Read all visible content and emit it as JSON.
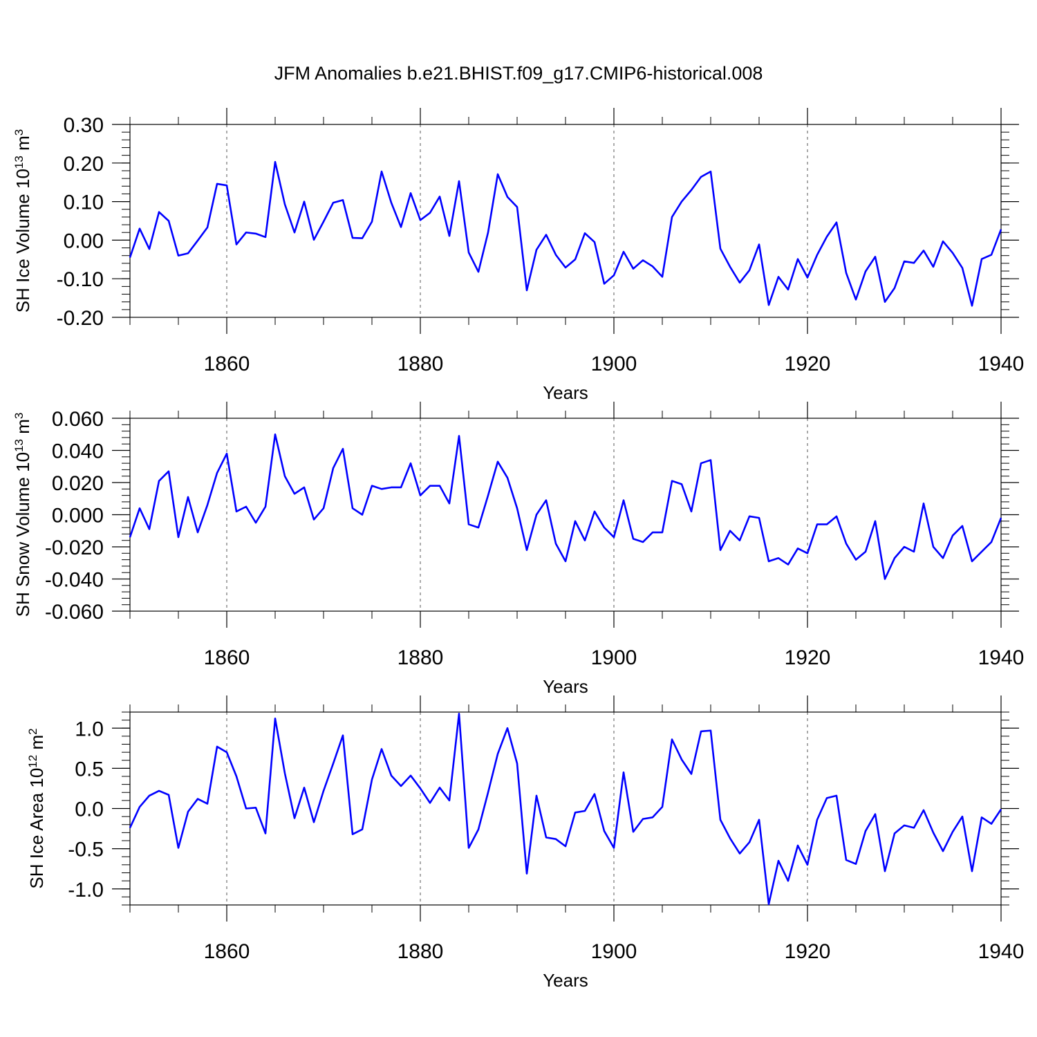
{
  "title": "JFM Anomalies b.e21.BHIST.f09_g17.CMIP6-historical.008",
  "colors": {
    "line": "#0000ff",
    "axis": "#000000",
    "grid": "#555555",
    "background": "#ffffff"
  },
  "chart_data": [
    {
      "type": "line",
      "id": "ice-volume",
      "ylabel_main": "SH Ice Volume 10",
      "ylabel_sup1": "13",
      "ylabel_mid": " m",
      "ylabel_sup2": "3",
      "xlabel": "Years",
      "xlim": [
        1850,
        1940
      ],
      "ylim": [
        -0.2,
        0.3
      ],
      "yticks": [
        -0.2,
        -0.1,
        0.0,
        0.1,
        0.2,
        0.3
      ],
      "ytick_labels": [
        "-0.20",
        "-0.10",
        "0.00",
        "0.10",
        "0.20",
        "0.30"
      ],
      "yminor_step": 0.02,
      "xticks": [
        1860,
        1880,
        1900,
        1920,
        1940
      ],
      "xtick_labels": [
        "1860",
        "1880",
        "1900",
        "1920",
        "1940"
      ],
      "xminor_step": 5,
      "x_start": 1850,
      "values": [
        -0.045,
        0.03,
        -0.023,
        0.073,
        0.05,
        -0.04,
        -0.034,
        -0.001,
        0.033,
        0.146,
        0.142,
        -0.011,
        0.02,
        0.017,
        0.008,
        0.203,
        0.093,
        0.02,
        0.1,
        0.001,
        0.048,
        0.097,
        0.104,
        0.006,
        0.005,
        0.048,
        0.178,
        0.097,
        0.034,
        0.122,
        0.052,
        0.071,
        0.113,
        0.011,
        0.153,
        -0.032,
        -0.082,
        0.02,
        0.171,
        0.112,
        0.086,
        -0.13,
        -0.025,
        0.014,
        -0.038,
        -0.071,
        -0.05,
        0.018,
        -0.005,
        -0.113,
        -0.091,
        -0.03,
        -0.074,
        -0.052,
        -0.068,
        -0.095,
        0.06,
        0.1,
        0.13,
        0.164,
        0.178,
        -0.022,
        -0.069,
        -0.11,
        -0.078,
        -0.011,
        -0.168,
        -0.095,
        -0.128,
        -0.049,
        -0.097,
        -0.038,
        0.009,
        0.046,
        -0.085,
        -0.154,
        -0.081,
        -0.043,
        -0.16,
        -0.124,
        -0.055,
        -0.059,
        -0.027,
        -0.069,
        -0.003,
        -0.033,
        -0.072,
        -0.17,
        -0.049,
        -0.038,
        0.028
      ]
    },
    {
      "type": "line",
      "id": "snow-volume",
      "ylabel_main": "SH Snow Volume 10",
      "ylabel_sup1": "13",
      "ylabel_mid": " m",
      "ylabel_sup2": "3",
      "xlabel": "Years",
      "xlim": [
        1850,
        1940
      ],
      "ylim": [
        -0.06,
        0.06
      ],
      "yticks": [
        -0.06,
        -0.04,
        -0.02,
        0.0,
        0.02,
        0.04,
        0.06
      ],
      "ytick_labels": [
        "-0.060",
        "-0.040",
        "-0.020",
        "0.000",
        "0.020",
        "0.040",
        "0.060"
      ],
      "yminor_step": 0.004,
      "xticks": [
        1860,
        1880,
        1900,
        1920,
        1940
      ],
      "xtick_labels": [
        "1860",
        "1880",
        "1900",
        "1920",
        "1940"
      ],
      "xminor_step": 5,
      "x_start": 1850,
      "values": [
        -0.014,
        0.004,
        -0.009,
        0.021,
        0.027,
        -0.014,
        0.011,
        -0.011,
        0.006,
        0.026,
        0.038,
        0.002,
        0.005,
        -0.005,
        0.005,
        0.05,
        0.024,
        0.013,
        0.017,
        -0.003,
        0.004,
        0.029,
        0.041,
        0.004,
        -0.0,
        0.018,
        0.016,
        0.017,
        0.017,
        0.032,
        0.012,
        0.018,
        0.018,
        0.007,
        0.049,
        -0.006,
        -0.008,
        0.012,
        0.033,
        0.023,
        0.004,
        -0.022,
        0.0,
        0.009,
        -0.018,
        -0.029,
        -0.004,
        -0.016,
        0.002,
        -0.008,
        -0.014,
        0.009,
        -0.015,
        -0.017,
        -0.011,
        -0.011,
        0.021,
        0.019,
        0.002,
        0.032,
        0.034,
        -0.022,
        -0.01,
        -0.016,
        -0.001,
        -0.002,
        -0.029,
        -0.027,
        -0.031,
        -0.021,
        -0.024,
        -0.006,
        -0.006,
        -0.001,
        -0.018,
        -0.028,
        -0.023,
        -0.004,
        -0.04,
        -0.027,
        -0.02,
        -0.023,
        0.007,
        -0.02,
        -0.027,
        -0.013,
        -0.007,
        -0.029,
        -0.023,
        -0.017,
        -0.002
      ]
    },
    {
      "type": "line",
      "id": "ice-area",
      "ylabel_main": "SH Ice Area 10",
      "ylabel_sup1": "12",
      "ylabel_mid": " m",
      "ylabel_sup2": "2",
      "xlabel": "Years",
      "xlim": [
        1850,
        1940
      ],
      "ylim": [
        -1.2,
        1.2
      ],
      "yticks": [
        -1.0,
        -0.5,
        0.0,
        0.5,
        1.0
      ],
      "ytick_labels": [
        "-1.0",
        "-0.5",
        "0.0",
        "0.5",
        "1.0"
      ],
      "yminor_step": 0.1,
      "xticks": [
        1860,
        1880,
        1900,
        1920,
        1940
      ],
      "xtick_labels": [
        "1860",
        "1880",
        "1900",
        "1920",
        "1940"
      ],
      "xminor_step": 5,
      "x_start": 1850,
      "values": [
        -0.24,
        0.02,
        0.16,
        0.22,
        0.17,
        -0.49,
        -0.04,
        0.12,
        0.06,
        0.77,
        0.7,
        0.4,
        0.0,
        0.01,
        -0.31,
        1.12,
        0.44,
        -0.12,
        0.26,
        -0.17,
        0.22,
        0.56,
        0.91,
        -0.32,
        -0.26,
        0.36,
        0.74,
        0.41,
        0.28,
        0.41,
        0.25,
        0.07,
        0.26,
        0.1,
        1.18,
        -0.49,
        -0.26,
        0.2,
        0.68,
        1.0,
        0.56,
        -0.81,
        0.16,
        -0.36,
        -0.38,
        -0.47,
        -0.05,
        -0.03,
        0.18,
        -0.28,
        -0.49,
        0.45,
        -0.29,
        -0.13,
        -0.11,
        0.02,
        0.86,
        0.61,
        0.43,
        0.96,
        0.97,
        -0.14,
        -0.37,
        -0.56,
        -0.42,
        -0.14,
        -1.19,
        -0.65,
        -0.9,
        -0.46,
        -0.7,
        -0.14,
        0.13,
        0.16,
        -0.64,
        -0.69,
        -0.28,
        -0.07,
        -0.78,
        -0.31,
        -0.21,
        -0.24,
        -0.02,
        -0.3,
        -0.53,
        -0.29,
        -0.1,
        -0.78,
        -0.11,
        -0.19,
        -0.01
      ]
    }
  ]
}
